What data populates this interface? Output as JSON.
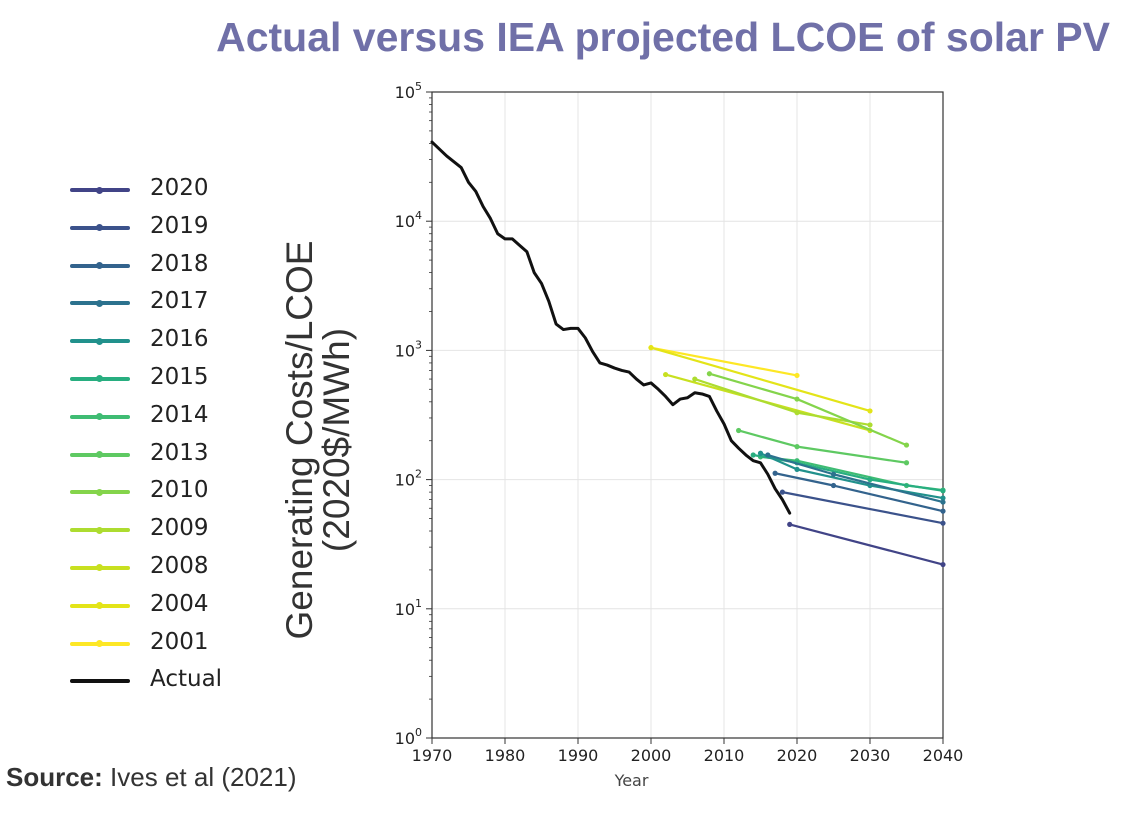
{
  "title": "Actual versus IEA projected LCOE of solar PV",
  "source": {
    "prefix": "Source:",
    "text": "Ives et al (2021)"
  },
  "chart_data": {
    "type": "line",
    "title": "Actual versus IEA projected LCOE of solar PV",
    "xlabel": "Year",
    "ylabel": [
      "Generating Costs/LCOE",
      "(2020$/MWh)"
    ],
    "xlim": [
      1970,
      2040
    ],
    "ylim": [
      1,
      100000
    ],
    "yscale": "log",
    "grid": true,
    "legend_position": "left",
    "xticks": [
      1970,
      1980,
      1990,
      2000,
      2010,
      2020,
      2030,
      2040
    ],
    "yticks": [
      {
        "value": 1,
        "base": "10",
        "exp": "0"
      },
      {
        "value": 10,
        "base": "10",
        "exp": "1"
      },
      {
        "value": 100,
        "base": "10",
        "exp": "2"
      },
      {
        "value": 1000,
        "base": "10",
        "exp": "3"
      },
      {
        "value": 10000,
        "base": "10",
        "exp": "4"
      },
      {
        "value": 100000,
        "base": "10",
        "exp": "5"
      }
    ],
    "series": [
      {
        "name": "2020",
        "color": "#414487",
        "x": [
          2019,
          2040
        ],
        "y": [
          45,
          22
        ]
      },
      {
        "name": "2019",
        "color": "#3b528b",
        "x": [
          2018,
          2040
        ],
        "y": [
          80,
          46
        ]
      },
      {
        "name": "2018",
        "color": "#33638d",
        "x": [
          2017,
          2025,
          2040
        ],
        "y": [
          112,
          90,
          57
        ]
      },
      {
        "name": "2017",
        "color": "#2c728e",
        "x": [
          2016,
          2025,
          2040
        ],
        "y": [
          155,
          110,
          67
        ]
      },
      {
        "name": "2016",
        "color": "#21918c",
        "x": [
          2015,
          2020,
          2030,
          2040
        ],
        "y": [
          160,
          120,
          90,
          72
        ]
      },
      {
        "name": "2015",
        "color": "#28ae80",
        "x": [
          2014,
          2020,
          2030,
          2040
        ],
        "y": [
          155,
          135,
          100,
          82
        ]
      },
      {
        "name": "2014",
        "color": "#3fbc73",
        "x": [
          2015,
          2020,
          2035,
          2040
        ],
        "y": [
          150,
          140,
          90,
          83
        ]
      },
      {
        "name": "2013",
        "color": "#5ec962",
        "x": [
          2012,
          2020,
          2035
        ],
        "y": [
          240,
          180,
          135
        ]
      },
      {
        "name": "2010",
        "color": "#84d44b",
        "x": [
          2008,
          2020,
          2035
        ],
        "y": [
          660,
          420,
          185
        ]
      },
      {
        "name": "2009",
        "color": "#addc30",
        "x": [
          2006,
          2020,
          2030
        ],
        "y": [
          600,
          330,
          265
        ]
      },
      {
        "name": "2008",
        "color": "#c8e020",
        "x": [
          2002,
          2030
        ],
        "y": [
          650,
          240
        ]
      },
      {
        "name": "2004",
        "color": "#e3e418",
        "x": [
          2000,
          2030
        ],
        "y": [
          1050,
          340
        ]
      },
      {
        "name": "2001",
        "color": "#fde725",
        "x": [
          2000,
          2020
        ],
        "y": [
          1050,
          640
        ]
      },
      {
        "name": "Actual",
        "color": "#111111",
        "x": [
          1970,
          1972,
          1974,
          1975,
          1976,
          1977,
          1978,
          1979,
          1980,
          1981,
          1982,
          1983,
          1984,
          1985,
          1986,
          1987,
          1988,
          1989,
          1990,
          1991,
          1992,
          1993,
          1994,
          1995,
          1996,
          1997,
          1998,
          1999,
          2000,
          2001,
          2002,
          2003,
          2004,
          2005,
          2006,
          2007,
          2008,
          2009,
          2010,
          2011,
          2012,
          2013,
          2014,
          2015,
          2016,
          2017,
          2018,
          2019
        ],
        "y": [
          41000,
          32000,
          26000,
          20000,
          17000,
          13000,
          10500,
          8000,
          7300,
          7300,
          6500,
          5800,
          4000,
          3300,
          2400,
          1600,
          1450,
          1480,
          1480,
          1250,
          980,
          800,
          770,
          730,
          700,
          680,
          600,
          540,
          560,
          500,
          440,
          380,
          420,
          430,
          470,
          460,
          440,
          340,
          270,
          200,
          175,
          155,
          140,
          135,
          110,
          85,
          70,
          55
        ]
      }
    ]
  }
}
